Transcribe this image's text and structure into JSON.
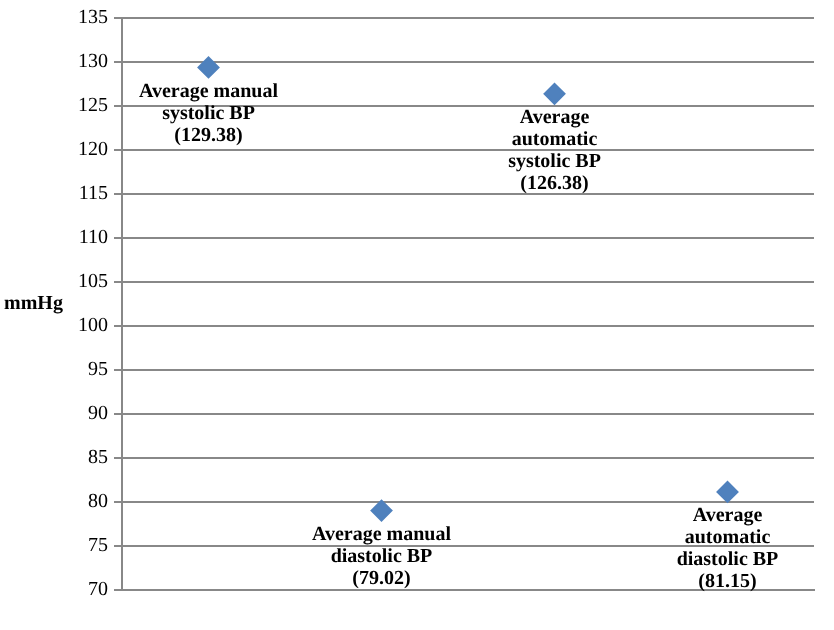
{
  "chart_data": {
    "type": "scatter",
    "ylabel": "mmHg",
    "categories": [
      null,
      null,
      null,
      null
    ],
    "series": [
      {
        "color": "#4f81bd",
        "values": [
          129.38,
          79.02,
          126.38,
          81.15
        ]
      }
    ],
    "ylim": [
      70,
      135
    ],
    "yticks": [
      70,
      75,
      80,
      85,
      90,
      95,
      100,
      105,
      110,
      115,
      120,
      125,
      130,
      135
    ],
    "grid": "y",
    "legend": false,
    "marker": "diamond",
    "annotations": [
      "Average manual\nsystolic BP\n(129.38)",
      "Average manual\ndiastolic BP\n(79.02)",
      "Average\nautomatic\nsystolic BP\n(126.38)",
      "Average\nautomatic\ndiastolic BP\n(81.15)"
    ]
  }
}
